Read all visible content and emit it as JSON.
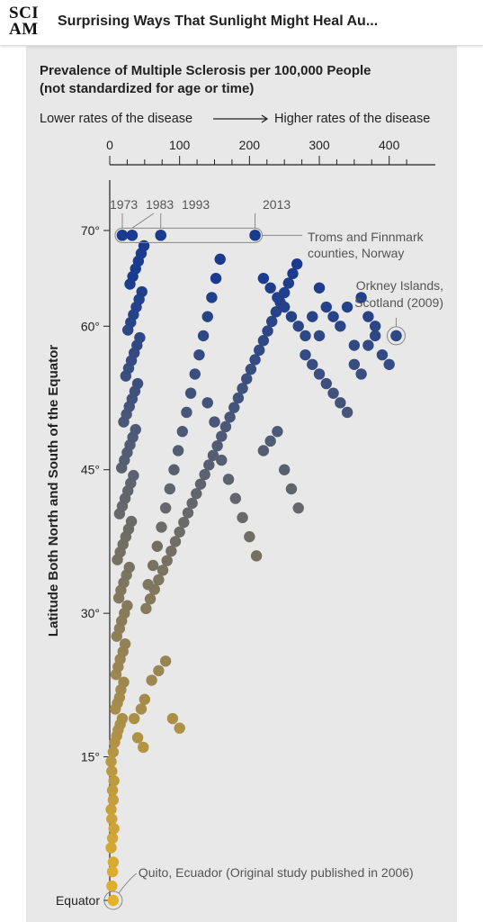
{
  "header": {
    "logo_line1": "SCI",
    "logo_line2": "AM",
    "title": "Surprising Ways That Sunlight Might Heal Au..."
  },
  "chart_data": {
    "type": "scatter",
    "title": "Prevalence of Multiple Sclerosis per 100,000 People",
    "subtitle": "(not standardized for age or time)",
    "direction_left": "Lower rates of the disease",
    "direction_right": "Higher rates of the disease",
    "ylabel": "Latitude Both North and South of the Equator",
    "xlim": [
      0,
      430
    ],
    "ylim": [
      0,
      75
    ],
    "x_ticks": [
      0,
      100,
      200,
      300,
      400
    ],
    "y_ticks": [
      {
        "value": 0,
        "label": "Equator"
      },
      {
        "value": 15,
        "label": "15°"
      },
      {
        "value": 30,
        "label": "30°"
      },
      {
        "value": 45,
        "label": "45°"
      },
      {
        "value": 60,
        "label": "60°"
      },
      {
        "value": 70,
        "label": "70°"
      }
    ],
    "color_low": "#E5B12C",
    "color_high": "#1B3C8E",
    "grid": false,
    "annotations": [
      {
        "text": "1973",
        "x": 18,
        "y": 69.5
      },
      {
        "text": "1983",
        "x": 32,
        "y": 69.5
      },
      {
        "text": "1993",
        "x": 73,
        "y": 69.5
      },
      {
        "text": "2013",
        "x": 208,
        "y": 69.5
      },
      {
        "text": "Troms and Finnmark counties, Norway",
        "line1": "Troms and Finnmark",
        "line2": "counties, Norway",
        "x": 208,
        "y": 69.5
      },
      {
        "text": "Orkney Islands, Scotland (2009)",
        "line1": "Orkney Islands,",
        "line2": "Scotland (2009)",
        "x": 410,
        "y": 59
      },
      {
        "text": "Quito, Ecuador (Original study published in 2006)",
        "x": 5,
        "y": 0
      }
    ],
    "points": [
      [
        18,
        69.5
      ],
      [
        32,
        69.5
      ],
      [
        73,
        69.5
      ],
      [
        208,
        69.5
      ],
      [
        410,
        59
      ],
      [
        5,
        0
      ],
      [
        3,
        1.5
      ],
      [
        4,
        3
      ],
      [
        5,
        4
      ],
      [
        2,
        5.5
      ],
      [
        4,
        6.5
      ],
      [
        6,
        7.5
      ],
      [
        3,
        8.5
      ],
      [
        2,
        9.5
      ],
      [
        5,
        10.5
      ],
      [
        4,
        11.5
      ],
      [
        6,
        12.5
      ],
      [
        3,
        13.5
      ],
      [
        2,
        14.5
      ],
      [
        5,
        15.5
      ],
      [
        7,
        16.5
      ],
      [
        10,
        17.2
      ],
      [
        12,
        17.8
      ],
      [
        15,
        18.4
      ],
      [
        18,
        19
      ],
      [
        8,
        20
      ],
      [
        11,
        20.6
      ],
      [
        14,
        21.2
      ],
      [
        16,
        22
      ],
      [
        20,
        22.8
      ],
      [
        9,
        23.6
      ],
      [
        12,
        24.4
      ],
      [
        15,
        25.2
      ],
      [
        19,
        26
      ],
      [
        22,
        26.8
      ],
      [
        10,
        27.6
      ],
      [
        14,
        28.4
      ],
      [
        17,
        29.2
      ],
      [
        21,
        30
      ],
      [
        25,
        30.8
      ],
      [
        13,
        31.6
      ],
      [
        16,
        32.4
      ],
      [
        20,
        33.2
      ],
      [
        24,
        34
      ],
      [
        28,
        34.8
      ],
      [
        11,
        35.6
      ],
      [
        15,
        36.4
      ],
      [
        19,
        37.2
      ],
      [
        23,
        38
      ],
      [
        27,
        38.8
      ],
      [
        31,
        39.6
      ],
      [
        14,
        40.4
      ],
      [
        18,
        41.2
      ],
      [
        22,
        42
      ],
      [
        26,
        42.8
      ],
      [
        30,
        43.6
      ],
      [
        34,
        44.4
      ],
      [
        17,
        45.2
      ],
      [
        21,
        46
      ],
      [
        25,
        46.8
      ],
      [
        29,
        47.6
      ],
      [
        33,
        48.4
      ],
      [
        37,
        49.2
      ],
      [
        20,
        50
      ],
      [
        24,
        50.8
      ],
      [
        28,
        51.6
      ],
      [
        32,
        52.4
      ],
      [
        36,
        53.2
      ],
      [
        40,
        54
      ],
      [
        23,
        54.8
      ],
      [
        27,
        55.6
      ],
      [
        31,
        56.4
      ],
      [
        35,
        57.2
      ],
      [
        39,
        58
      ],
      [
        43,
        58.8
      ],
      [
        26,
        59.6
      ],
      [
        30,
        60.4
      ],
      [
        34,
        61.2
      ],
      [
        38,
        62
      ],
      [
        42,
        62.8
      ],
      [
        46,
        63.6
      ],
      [
        29,
        64.4
      ],
      [
        33,
        65.2
      ],
      [
        37,
        66
      ],
      [
        41,
        66.8
      ],
      [
        45,
        67.6
      ],
      [
        49,
        68.4
      ],
      [
        52,
        30.5
      ],
      [
        58,
        31.5
      ],
      [
        64,
        32.5
      ],
      [
        70,
        33.5
      ],
      [
        76,
        34.5
      ],
      [
        82,
        35.5
      ],
      [
        88,
        36.5
      ],
      [
        94,
        37.5
      ],
      [
        100,
        38.5
      ],
      [
        106,
        39.5
      ],
      [
        112,
        40.5
      ],
      [
        118,
        41.5
      ],
      [
        124,
        42.5
      ],
      [
        130,
        43.5
      ],
      [
        136,
        44.5
      ],
      [
        142,
        45.5
      ],
      [
        148,
        46.5
      ],
      [
        154,
        47.5
      ],
      [
        160,
        48.5
      ],
      [
        166,
        49.5
      ],
      [
        172,
        50.5
      ],
      [
        178,
        51.5
      ],
      [
        184,
        52.5
      ],
      [
        190,
        53.5
      ],
      [
        196,
        54.5
      ],
      [
        202,
        55.5
      ],
      [
        208,
        56.5
      ],
      [
        214,
        57.5
      ],
      [
        220,
        58.5
      ],
      [
        226,
        59.5
      ],
      [
        232,
        60.5
      ],
      [
        238,
        61.5
      ],
      [
        244,
        62.5
      ],
      [
        250,
        63.5
      ],
      [
        256,
        64.5
      ],
      [
        262,
        65.5
      ],
      [
        268,
        66.5
      ],
      [
        55,
        33
      ],
      [
        62,
        35
      ],
      [
        68,
        37
      ],
      [
        74,
        39
      ],
      [
        80,
        41
      ],
      [
        86,
        43
      ],
      [
        92,
        45
      ],
      [
        98,
        47
      ],
      [
        104,
        49
      ],
      [
        110,
        51
      ],
      [
        116,
        53
      ],
      [
        122,
        55
      ],
      [
        128,
        57
      ],
      [
        134,
        59
      ],
      [
        140,
        61
      ],
      [
        146,
        63
      ],
      [
        152,
        65
      ],
      [
        158,
        67
      ],
      [
        60,
        23
      ],
      [
        70,
        24
      ],
      [
        80,
        25
      ],
      [
        90,
        19
      ],
      [
        100,
        18
      ],
      [
        45,
        20
      ],
      [
        50,
        21
      ],
      [
        35,
        19
      ],
      [
        40,
        17
      ],
      [
        48,
        16
      ],
      [
        140,
        52
      ],
      [
        150,
        50
      ],
      [
        160,
        46
      ],
      [
        170,
        44
      ],
      [
        180,
        42
      ],
      [
        190,
        40
      ],
      [
        200,
        38
      ],
      [
        210,
        36
      ],
      [
        220,
        47
      ],
      [
        230,
        48
      ],
      [
        240,
        49
      ],
      [
        250,
        45
      ],
      [
        260,
        43
      ],
      [
        270,
        41
      ],
      [
        280,
        57
      ],
      [
        290,
        56
      ],
      [
        300,
        55
      ],
      [
        310,
        54
      ],
      [
        320,
        53
      ],
      [
        330,
        52
      ],
      [
        340,
        51
      ],
      [
        350,
        56
      ],
      [
        360,
        55
      ],
      [
        370,
        58
      ],
      [
        380,
        60
      ],
      [
        390,
        57
      ],
      [
        400,
        56
      ],
      [
        300,
        64
      ],
      [
        310,
        62
      ],
      [
        320,
        61
      ],
      [
        330,
        60
      ],
      [
        340,
        62
      ],
      [
        350,
        58
      ],
      [
        360,
        63
      ],
      [
        370,
        61
      ],
      [
        380,
        59
      ],
      [
        220,
        65
      ],
      [
        230,
        64
      ],
      [
        240,
        63
      ],
      [
        250,
        62
      ],
      [
        260,
        61
      ],
      [
        270,
        60
      ],
      [
        280,
        59
      ],
      [
        290,
        61
      ],
      [
        300,
        59
      ]
    ]
  }
}
